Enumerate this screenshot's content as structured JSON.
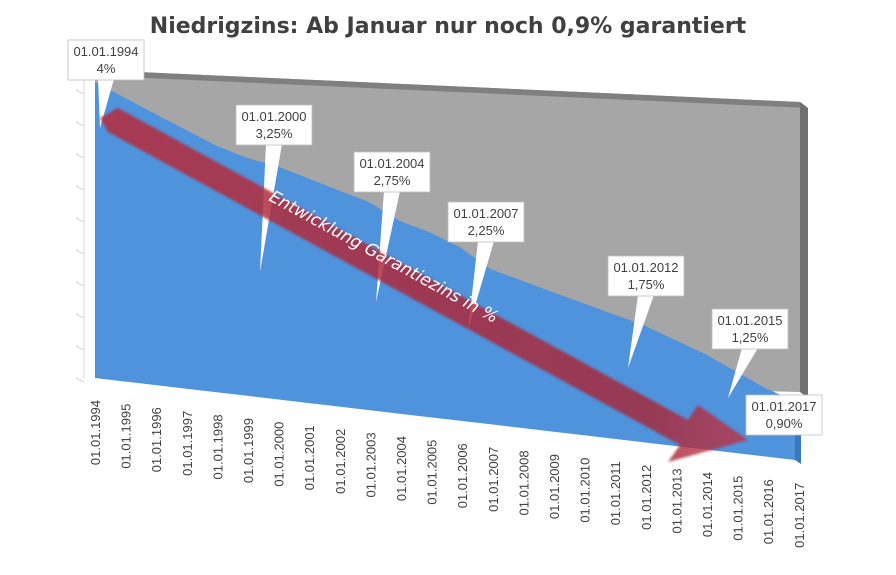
{
  "title": "Niedrigzins: Ab Januar nur noch 0,9% garantiert",
  "arrow_label": "Entwicklung Garantiezins in %",
  "colors": {
    "area": "#4f93dc",
    "area_dark": "#3a78be",
    "back_wall": "#a6a6a6",
    "wall_edge": "#7f7f7f",
    "arrow": "#a5293a",
    "text": "#404040"
  },
  "chart_data": {
    "type": "area",
    "title": "Niedrigzins: Ab Januar nur noch 0,9% garantiert",
    "xlabel": "",
    "ylabel": "",
    "ylim": [
      0,
      4
    ],
    "categories": [
      "01.01.1994",
      "01.01.1995",
      "01.01.1996",
      "01.01.1997",
      "01.01.1998",
      "01.01.1999",
      "01.01.2000",
      "01.01.2001",
      "01.01.2002",
      "01.01.2003",
      "01.01.2004",
      "01.01.2005",
      "01.01.2006",
      "01.01.2007",
      "01.01.2008",
      "01.01.2009",
      "01.01.2010",
      "01.01.2011",
      "01.01.2012",
      "01.01.2013",
      "01.01.2014",
      "01.01.2015",
      "01.01.2016",
      "01.01.2017"
    ],
    "values": [
      4,
      3.85,
      3.7,
      3.55,
      3.4,
      3.3,
      3.25,
      3.15,
      3.05,
      2.95,
      2.75,
      2.65,
      2.5,
      2.25,
      2.15,
      2.05,
      1.95,
      1.85,
      1.75,
      1.6,
      1.45,
      1.25,
      1.05,
      0.9
    ],
    "annotations": [
      {
        "date": "01.01.1994",
        "value": "4%"
      },
      {
        "date": "01.01.2000",
        "value": "3,25%"
      },
      {
        "date": "01.01.2004",
        "value": "2,75%"
      },
      {
        "date": "01.01.2007",
        "value": "2,25%"
      },
      {
        "date": "01.01.2012",
        "value": "1,75%"
      },
      {
        "date": "01.01.2015",
        "value": "1,25%"
      },
      {
        "date": "01.01.2017",
        "value": "0,90%"
      }
    ]
  }
}
